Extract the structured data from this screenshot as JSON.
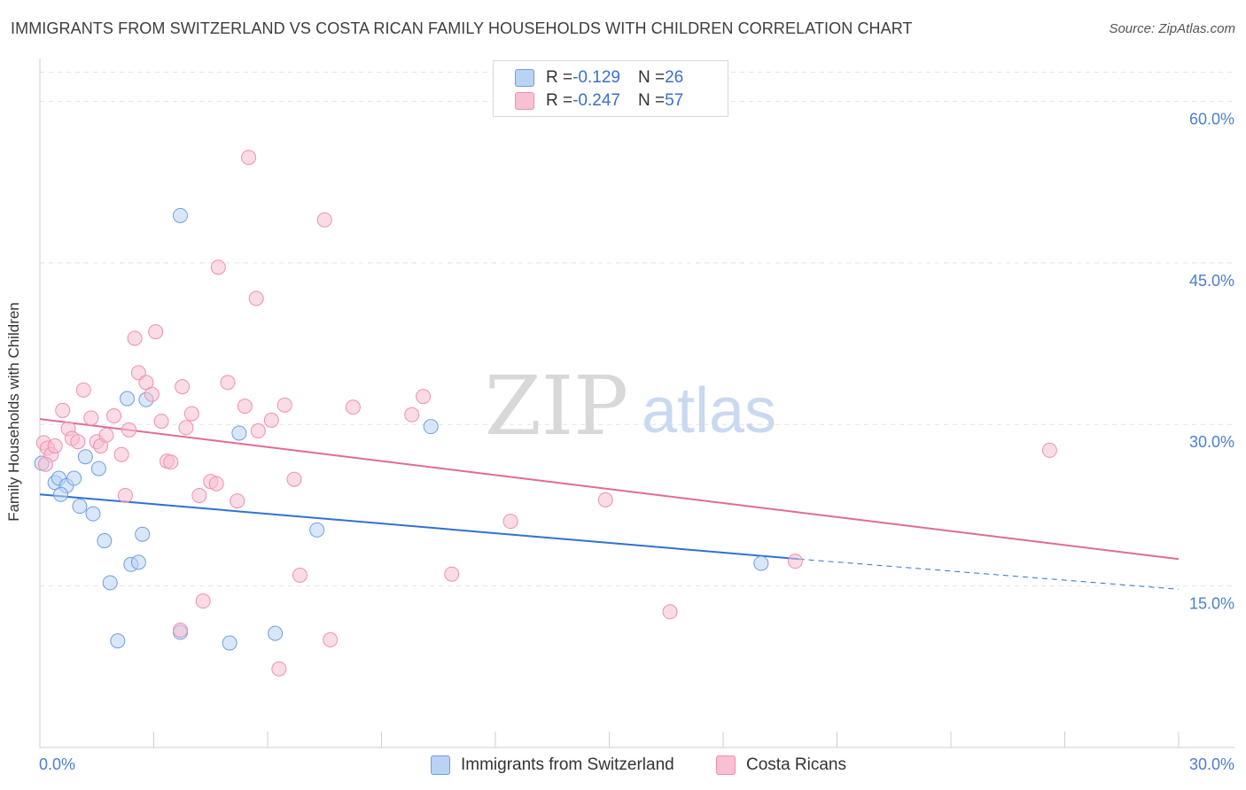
{
  "title": "IMMIGRANTS FROM SWITZERLAND VS COSTA RICAN FAMILY HOUSEHOLDS WITH CHILDREN CORRELATION CHART",
  "source": "Source: ZipAtlas.com",
  "watermark": {
    "zip": "ZIP",
    "atlas": "atlas"
  },
  "legend": {
    "rows": [
      {
        "r_label": "R = ",
        "r_value": "-0.129",
        "n_label": "N = ",
        "n_value": "26",
        "color": "#b9d3f5"
      },
      {
        "r_label": "R = ",
        "r_value": "-0.247",
        "n_label": "N = ",
        "n_value": "57",
        "color": "#f8c0d2"
      }
    ]
  },
  "bottom_legend": [
    {
      "label": "Immigrants from Switzerland",
      "color": "#b9d3f5"
    },
    {
      "label": "Costa Ricans",
      "color": "#f8c0d2"
    }
  ],
  "chart_data": {
    "type": "scatter",
    "title": "IMMIGRANTS FROM SWITZERLAND VS COSTA RICAN FAMILY HOUSEHOLDS WITH CHILDREN CORRELATION CHART",
    "xlabel": "",
    "ylabel": "Family Households with Children",
    "xlim": [
      0,
      30
    ],
    "ylim": [
      0,
      63
    ],
    "x_tick_labels": [
      "0.0%",
      "30.0%"
    ],
    "y_ticks": [
      15,
      30,
      45,
      60
    ],
    "y_tick_labels": [
      "15.0%",
      "30.0%",
      "45.0%",
      "60.0%"
    ],
    "grid": true,
    "series": [
      {
        "name": "Immigrants from Switzerland",
        "color": "#b9d3f5",
        "stroke": "#6f9ee3",
        "line_color": "#2f72d0",
        "trend": {
          "x": [
            0,
            20
          ],
          "y": [
            23.5,
            17.5
          ],
          "dashed_to_x": 30,
          "dashed_to_y": 14.7
        },
        "points": [
          [
            0.05,
            26.4
          ],
          [
            0.4,
            24.6
          ],
          [
            0.5,
            25.0
          ],
          [
            0.7,
            24.3
          ],
          [
            0.9,
            25.0
          ],
          [
            0.55,
            23.5
          ],
          [
            1.2,
            27.0
          ],
          [
            1.55,
            25.9
          ],
          [
            1.05,
            22.4
          ],
          [
            1.4,
            21.7
          ],
          [
            1.7,
            19.2
          ],
          [
            2.3,
            32.4
          ],
          [
            2.8,
            32.3
          ],
          [
            2.7,
            19.8
          ],
          [
            2.4,
            17.0
          ],
          [
            2.6,
            17.2
          ],
          [
            1.85,
            15.3
          ],
          [
            2.05,
            9.9
          ],
          [
            3.7,
            49.4
          ],
          [
            3.7,
            10.7
          ],
          [
            5.25,
            29.2
          ],
          [
            5.0,
            9.7
          ],
          [
            6.2,
            10.6
          ],
          [
            7.3,
            20.2
          ],
          [
            10.3,
            29.8
          ],
          [
            19.0,
            17.1
          ]
        ]
      },
      {
        "name": "Costa Ricans",
        "color": "#f8c0d2",
        "stroke": "#ee8fb0",
        "line_color": "#e06b97",
        "trend": {
          "x": [
            0,
            30
          ],
          "y": [
            30.5,
            17.5
          ]
        },
        "points": [
          [
            0.1,
            28.3
          ],
          [
            0.2,
            27.8
          ],
          [
            0.3,
            27.2
          ],
          [
            0.15,
            26.3
          ],
          [
            0.4,
            28.0
          ],
          [
            0.6,
            31.3
          ],
          [
            0.75,
            29.6
          ],
          [
            0.85,
            28.7
          ],
          [
            1.0,
            28.4
          ],
          [
            1.15,
            33.2
          ],
          [
            1.35,
            30.6
          ],
          [
            1.5,
            28.4
          ],
          [
            1.6,
            28.0
          ],
          [
            1.75,
            29.0
          ],
          [
            1.95,
            30.8
          ],
          [
            2.15,
            27.2
          ],
          [
            2.25,
            23.4
          ],
          [
            2.35,
            29.5
          ],
          [
            2.5,
            38.0
          ],
          [
            2.6,
            34.8
          ],
          [
            2.8,
            33.9
          ],
          [
            2.95,
            32.8
          ],
          [
            3.05,
            38.6
          ],
          [
            3.2,
            30.3
          ],
          [
            3.35,
            26.6
          ],
          [
            3.45,
            26.5
          ],
          [
            3.7,
            10.9
          ],
          [
            3.75,
            33.5
          ],
          [
            3.85,
            29.7
          ],
          [
            4.0,
            31.0
          ],
          [
            4.2,
            23.4
          ],
          [
            4.3,
            13.6
          ],
          [
            4.5,
            24.7
          ],
          [
            4.65,
            24.5
          ],
          [
            4.7,
            44.6
          ],
          [
            4.95,
            33.9
          ],
          [
            5.2,
            22.9
          ],
          [
            5.4,
            31.7
          ],
          [
            5.5,
            54.8
          ],
          [
            5.7,
            41.7
          ],
          [
            5.75,
            29.4
          ],
          [
            6.1,
            30.4
          ],
          [
            6.3,
            7.3
          ],
          [
            6.45,
            31.8
          ],
          [
            6.7,
            24.9
          ],
          [
            6.85,
            16.0
          ],
          [
            7.5,
            49.0
          ],
          [
            7.65,
            10.0
          ],
          [
            8.25,
            31.6
          ],
          [
            9.8,
            30.9
          ],
          [
            10.1,
            32.6
          ],
          [
            10.85,
            16.1
          ],
          [
            12.4,
            21.0
          ],
          [
            14.9,
            23.0
          ],
          [
            16.6,
            12.6
          ],
          [
            19.9,
            17.3
          ],
          [
            26.6,
            27.6
          ]
        ]
      }
    ]
  }
}
